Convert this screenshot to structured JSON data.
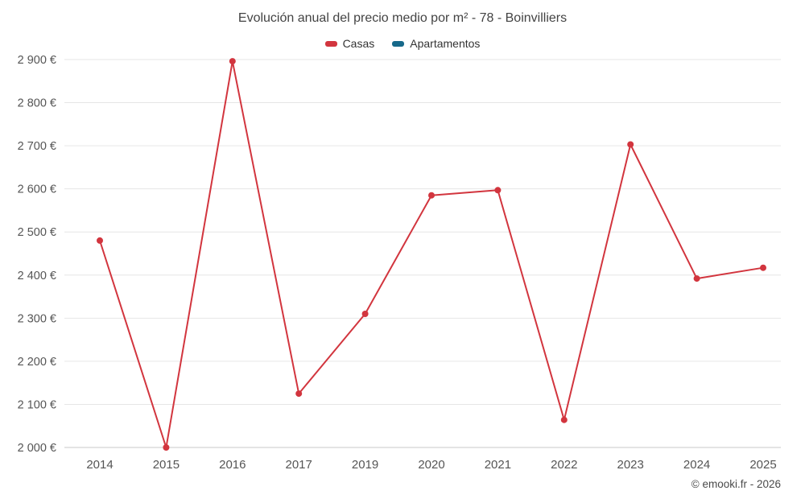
{
  "chart": {
    "title": "Evolución anual del precio medio por m² - 78 - Boinvilliers",
    "copyright": "© emooki.fr - 2026"
  },
  "chart_data": {
    "type": "line",
    "title": "Evolución anual del precio medio por m² - 78 - Boinvilliers",
    "categories": [
      "2014",
      "2015",
      "2016",
      "2017",
      "2019",
      "2020",
      "2021",
      "2022",
      "2023",
      "2024",
      "2025"
    ],
    "series": [
      {
        "name": "Casas",
        "color": "#d2353e",
        "values": [
          2480,
          2000,
          2896,
          2125,
          2310,
          2585,
          2597,
          2064,
          2703,
          2392,
          2417
        ]
      }
    ],
    "legend": [
      {
        "label": "Casas",
        "color": "#d2353e"
      },
      {
        "label": "Apartamentos",
        "color": "#17698a"
      }
    ],
    "xlabel": "",
    "ylabel": "",
    "ylim": [
      2000,
      2900
    ],
    "ytick_step": 100,
    "ytick_suffix": "€",
    "grid": true,
    "legend_position": "top",
    "note": "No data points shown for the Apartamentos series"
  }
}
